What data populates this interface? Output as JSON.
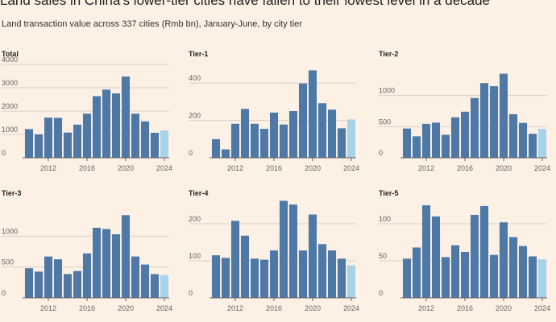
{
  "header": {
    "headline": "Land sales in China's lower-tier cities have fallen to their lowest level in a decade",
    "subtitle": "Land transaction value across 337 cities (Rmb bn), January-June, by city tier"
  },
  "colors": {
    "bar": "#4e79a7",
    "bar_latest": "#a6d3ea",
    "background": "#fdf1e6"
  },
  "chart_data": [
    {
      "type": "bar",
      "title": "Total",
      "categories": [
        "2010",
        "2011",
        "2012",
        "2013",
        "2014",
        "2015",
        "2016",
        "2017",
        "2018",
        "2019",
        "2020",
        "2021",
        "2022",
        "2023",
        "2024"
      ],
      "values": [
        1230,
        1000,
        1720,
        1710,
        1080,
        1420,
        1890,
        2640,
        2920,
        2760,
        3480,
        1890,
        1560,
        1070,
        1170
      ],
      "ylim": [
        0,
        4000
      ],
      "yticks": [
        "0",
        "1000",
        "2000",
        "3000",
        "4000"
      ],
      "ytick_values": [
        0,
        1000,
        2000,
        3000,
        4000
      ],
      "xticks": [
        "2012",
        "2016",
        "2020",
        "2024"
      ],
      "highlight_last": true
    },
    {
      "type": "bar",
      "title": "Tier-1",
      "categories": [
        "2010",
        "2011",
        "2012",
        "2013",
        "2014",
        "2015",
        "2016",
        "2017",
        "2018",
        "2019",
        "2020",
        "2021",
        "2022",
        "2023",
        "2024"
      ],
      "values": [
        100,
        45,
        182,
        262,
        182,
        155,
        242,
        178,
        250,
        398,
        468,
        292,
        258,
        158,
        205
      ],
      "ylim": [
        0,
        500
      ],
      "yticks": [
        "0",
        "200",
        "400"
      ],
      "ytick_values": [
        0,
        200,
        400
      ],
      "xticks": [
        "2012",
        "2016",
        "2020",
        "2024"
      ],
      "highlight_last": true
    },
    {
      "type": "bar",
      "title": "Tier-2",
      "categories": [
        "2010",
        "2011",
        "2012",
        "2013",
        "2014",
        "2015",
        "2016",
        "2017",
        "2018",
        "2019",
        "2020",
        "2021",
        "2022",
        "2023",
        "2024"
      ],
      "values": [
        470,
        345,
        545,
        565,
        370,
        650,
        740,
        960,
        1200,
        1150,
        1350,
        700,
        560,
        385,
        465
      ],
      "ylim": [
        0,
        1500
      ],
      "yticks": [
        "0",
        "500",
        "1000"
      ],
      "ytick_values": [
        0,
        500,
        1000
      ],
      "xticks": [
        "2012",
        "2016",
        "2020",
        "2024"
      ],
      "highlight_last": true
    },
    {
      "type": "bar",
      "title": "Tier-3",
      "categories": [
        "2010",
        "2011",
        "2012",
        "2013",
        "2014",
        "2015",
        "2016",
        "2017",
        "2018",
        "2019",
        "2020",
        "2021",
        "2022",
        "2023",
        "2024"
      ],
      "values": [
        480,
        425,
        670,
        625,
        385,
        435,
        720,
        1135,
        1115,
        1030,
        1340,
        670,
        540,
        385,
        370
      ],
      "ylim": [
        0,
        1500
      ],
      "yticks": [
        "0",
        "500",
        "1000"
      ],
      "ytick_values": [
        0,
        500,
        1000
      ],
      "xticks": [
        "2012",
        "2016",
        "2020",
        "2024"
      ],
      "highlight_last": true
    },
    {
      "type": "bar",
      "title": "Tier-4",
      "categories": [
        "2010",
        "2011",
        "2012",
        "2013",
        "2014",
        "2015",
        "2016",
        "2017",
        "2018",
        "2019",
        "2020",
        "2021",
        "2022",
        "2023",
        "2024"
      ],
      "values": [
        115,
        108,
        208,
        168,
        106,
        103,
        128,
        262,
        252,
        128,
        225,
        145,
        128,
        106,
        88
      ],
      "ylim": [
        0,
        250
      ],
      "yticks": [
        "0",
        "100",
        "200"
      ],
      "ytick_values": [
        0,
        100,
        200
      ],
      "xticks": [
        "2012",
        "2016",
        "2020",
        "2024"
      ],
      "highlight_last": true
    },
    {
      "type": "bar",
      "title": "Tier-5",
      "categories": [
        "2010",
        "2011",
        "2012",
        "2013",
        "2014",
        "2015",
        "2016",
        "2017",
        "2018",
        "2019",
        "2020",
        "2021",
        "2022",
        "2023",
        "2024"
      ],
      "values": [
        53,
        68,
        125,
        110,
        55,
        71,
        62,
        112,
        124,
        58,
        102,
        82,
        70,
        56,
        52
      ],
      "ylim": [
        0,
        125
      ],
      "yticks": [
        "0",
        "50",
        "100"
      ],
      "ytick_values": [
        0,
        50,
        100
      ],
      "xticks": [
        "2012",
        "2016",
        "2020",
        "2024"
      ],
      "highlight_last": true
    }
  ]
}
